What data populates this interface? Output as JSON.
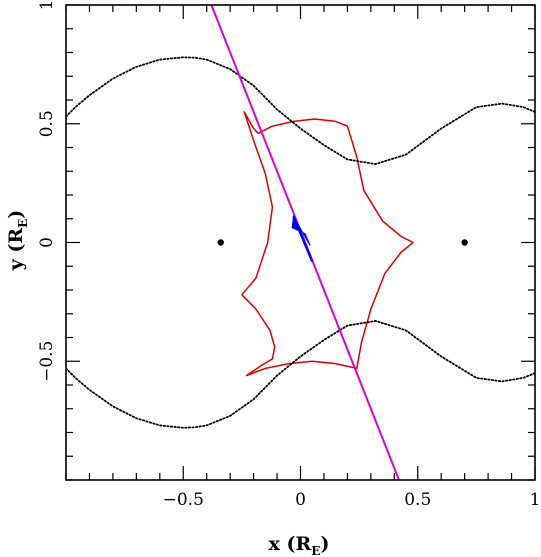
{
  "chart_data": {
    "type": "line",
    "title": "",
    "xlabel": "x (R",
    "xlabel_sub": "E",
    "xlabel_close": ")",
    "ylabel": "y (R",
    "ylabel_sub": "E",
    "ylabel_close": ")",
    "xlim": [
      -1,
      1
    ],
    "ylim": [
      -1,
      1
    ],
    "xticks": [
      -0.5,
      0,
      0.5,
      1
    ],
    "xtick_labels": [
      "−0.5",
      "0",
      "0.5",
      "1"
    ],
    "yticks": [
      -0.5,
      0,
      0.5,
      1
    ],
    "ytick_labels": [
      "−0.5",
      "0",
      "0.5",
      "1"
    ],
    "grid": false,
    "colors": {
      "caustic": "#dd0000",
      "critical_curve": "#000000",
      "source_trajectory": "#dd00dd",
      "source_arrow": "#0000ff",
      "lens_masses": "#000000"
    },
    "series": [
      {
        "kind": "caustic",
        "style": "solid",
        "x": [
          0.48,
          0.43,
          0.35,
          0.27,
          0.24,
          0.2,
          0.15,
          0.06,
          -0.03,
          -0.12,
          -0.18,
          -0.2,
          -0.24,
          -0.2,
          -0.15,
          -0.12,
          -0.14,
          -0.19,
          -0.25,
          -0.19,
          -0.13,
          -0.11,
          -0.12,
          -0.17,
          -0.23,
          -0.15,
          -0.05,
          0.05,
          0.15,
          0.24,
          0.26,
          0.3,
          0.36,
          0.43,
          0.48
        ],
        "y": [
          0.0,
          0.025,
          0.09,
          0.22,
          0.36,
          0.49,
          0.51,
          0.52,
          0.51,
          0.49,
          0.46,
          0.48,
          0.55,
          0.43,
          0.29,
          0.15,
          0.0,
          -0.15,
          -0.22,
          -0.28,
          -0.37,
          -0.44,
          -0.49,
          -0.52,
          -0.56,
          -0.53,
          -0.51,
          -0.5,
          -0.51,
          -0.53,
          -0.42,
          -0.28,
          -0.13,
          -0.04,
          0.0
        ]
      },
      {
        "kind": "critical-curve-upper",
        "style": "dotted",
        "x": [
          -1.0,
          -0.96,
          -0.9,
          -0.8,
          -0.7,
          -0.6,
          -0.5,
          -0.45,
          -0.4,
          -0.3,
          -0.2,
          -0.1,
          0.0,
          0.1,
          0.2,
          0.32,
          0.45,
          0.6,
          0.75,
          0.86,
          0.95,
          1.0
        ],
        "y": [
          0.53,
          0.57,
          0.62,
          0.69,
          0.74,
          0.77,
          0.78,
          0.778,
          0.77,
          0.73,
          0.66,
          0.56,
          0.48,
          0.41,
          0.35,
          0.33,
          0.37,
          0.48,
          0.57,
          0.585,
          0.57,
          0.55
        ]
      },
      {
        "kind": "critical-curve-lower",
        "style": "dotted",
        "x": [
          -1.0,
          -0.96,
          -0.9,
          -0.8,
          -0.7,
          -0.6,
          -0.5,
          -0.45,
          -0.4,
          -0.3,
          -0.2,
          -0.1,
          0.0,
          0.1,
          0.2,
          0.32,
          0.45,
          0.6,
          0.75,
          0.86,
          0.95,
          1.0
        ],
        "y": [
          -0.53,
          -0.57,
          -0.62,
          -0.69,
          -0.74,
          -0.77,
          -0.78,
          -0.778,
          -0.77,
          -0.73,
          -0.66,
          -0.56,
          -0.48,
          -0.41,
          -0.35,
          -0.33,
          -0.37,
          -0.48,
          -0.57,
          -0.585,
          -0.57,
          -0.55
        ]
      },
      {
        "kind": "source-trajectory",
        "style": "solid",
        "x": [
          -0.38,
          0.42
        ],
        "y": [
          1.0,
          -1.0
        ]
      }
    ],
    "lens_points": [
      {
        "x": -0.34,
        "y": 0.0
      },
      {
        "x": 0.7,
        "y": 0.0
      }
    ],
    "source_arrow": {
      "x_from": 0.05,
      "y_from": -0.08,
      "x_to": -0.03,
      "y_to": 0.11,
      "head_x": 0.02,
      "head_y": 0.02
    }
  }
}
